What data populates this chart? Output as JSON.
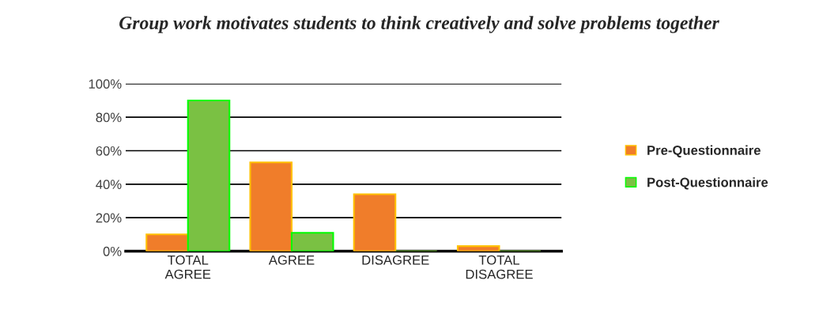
{
  "chart_data": {
    "type": "bar",
    "title": "Group work motivates students to think creatively and solve problems together",
    "categories": [
      "TOTAL\nAGREE",
      "AGREE",
      "DISAGREE",
      "TOTAL\nDISAGREE"
    ],
    "series": [
      {
        "name": "Pre-Questionnaire",
        "color": "#f07d2a",
        "values": [
          10,
          53,
          34,
          3
        ]
      },
      {
        "name": "Post-Questionnaire",
        "color": "#7ac143",
        "values": [
          90,
          11,
          0,
          0
        ]
      }
    ],
    "ylim": [
      0,
      100
    ],
    "yticks": [
      {
        "value": 0,
        "label": "0%"
      },
      {
        "value": 20,
        "label": "20%"
      },
      {
        "value": 40,
        "label": "40%"
      },
      {
        "value": 60,
        "label": "60%"
      },
      {
        "value": 80,
        "label": "80%"
      },
      {
        "value": 100,
        "label": "100%"
      }
    ],
    "grid": "y",
    "legend": "right"
  }
}
